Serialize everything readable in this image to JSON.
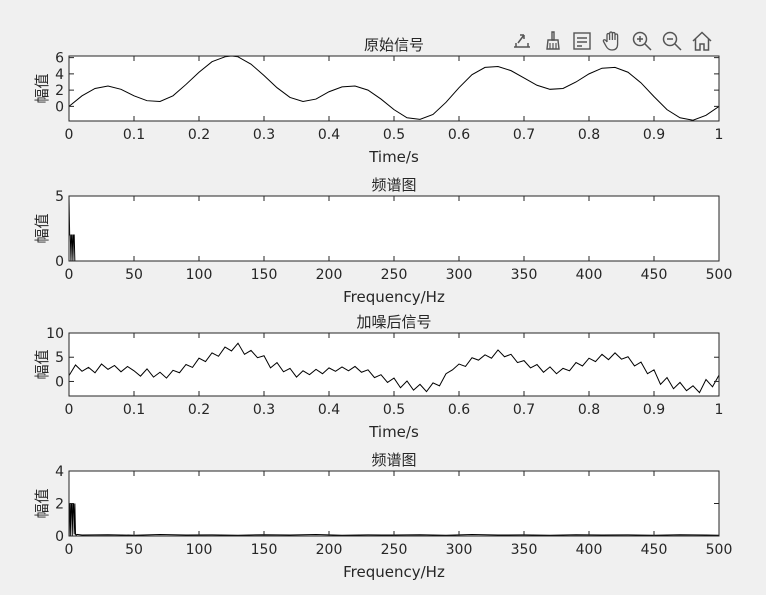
{
  "colors": {
    "background": "#f0f0f0",
    "axes_background": "#ffffff",
    "axis": "#262626",
    "line": "#000000",
    "toolbar_icon": "#555555"
  },
  "toolbar": {
    "icons": [
      "export-icon",
      "brush-icon",
      "legend-icon",
      "pan-hand-icon",
      "zoom-in-icon",
      "zoom-out-icon",
      "home-icon"
    ]
  },
  "chart_data": [
    {
      "type": "line",
      "title": "原始信号",
      "xlabel": "Time/s",
      "ylabel": "幅值",
      "xlim": [
        0,
        1
      ],
      "ylim": [
        -1.8,
        6.2
      ],
      "xticks": [
        0,
        0.1,
        0.2,
        0.3,
        0.4,
        0.5,
        0.6,
        0.7,
        0.8,
        0.9,
        1
      ],
      "xtick_labels": [
        "0",
        "0.1",
        "0.2",
        "0.3",
        "0.4",
        "0.5",
        "0.6",
        "0.7",
        "0.8",
        "0.9",
        "1"
      ],
      "yticks": [
        0,
        2,
        4,
        6
      ],
      "ytick_labels": [
        "0",
        "2",
        "4",
        "6"
      ],
      "series": [
        {
          "x": [
            0,
            0.02,
            0.04,
            0.06,
            0.08,
            0.1,
            0.12,
            0.14,
            0.16,
            0.18,
            0.2,
            0.22,
            0.24,
            0.25,
            0.26,
            0.28,
            0.3,
            0.32,
            0.34,
            0.36,
            0.38,
            0.4,
            0.42,
            0.44,
            0.46,
            0.48,
            0.5,
            0.52,
            0.54,
            0.56,
            0.58,
            0.6,
            0.62,
            0.64,
            0.66,
            0.68,
            0.7,
            0.72,
            0.74,
            0.76,
            0.78,
            0.8,
            0.82,
            0.84,
            0.86,
            0.88,
            0.9,
            0.92,
            0.94,
            0.96,
            0.98,
            1
          ],
          "y": [
            0.0,
            1.3,
            2.2,
            2.5,
            2.1,
            1.3,
            0.7,
            0.6,
            1.3,
            2.7,
            4.2,
            5.5,
            6.1,
            6.2,
            6.1,
            5.2,
            3.8,
            2.3,
            1.1,
            0.6,
            0.9,
            1.8,
            2.4,
            2.5,
            2.0,
            0.9,
            -0.4,
            -1.4,
            -1.6,
            -1.0,
            0.5,
            2.3,
            3.9,
            4.8,
            4.9,
            4.4,
            3.5,
            2.6,
            2.1,
            2.2,
            3.0,
            4.0,
            4.7,
            4.8,
            4.2,
            2.9,
            1.2,
            -0.4,
            -1.4,
            -1.7,
            -1.1,
            0.0
          ]
        }
      ]
    },
    {
      "type": "line",
      "title": "频谱图",
      "xlabel": "Frequency/Hz",
      "ylabel": "幅值",
      "xlim": [
        0,
        500
      ],
      "ylim": [
        0,
        5
      ],
      "xticks": [
        0,
        50,
        100,
        150,
        200,
        250,
        300,
        350,
        400,
        450,
        500
      ],
      "xtick_labels": [
        "0",
        "50",
        "100",
        "150",
        "200",
        "250",
        "300",
        "350",
        "400",
        "450",
        "500"
      ],
      "yticks": [
        0,
        5
      ],
      "ytick_labels": [
        "0",
        "5"
      ],
      "series": [
        {
          "x": [
            0,
            0.5,
            1,
            1.5,
            2,
            2.5,
            3,
            3.5,
            4,
            4.5,
            5,
            5.5,
            6,
            500
          ],
          "y": [
            5.0,
            2.0,
            2.0,
            0.0,
            2.0,
            2.0,
            0.0,
            2.0,
            2.0,
            0.0,
            0.0,
            0.0,
            0.0,
            0.0
          ]
        }
      ]
    },
    {
      "type": "line",
      "title": "加噪后信号",
      "xlabel": "Time/s",
      "ylabel": "幅值",
      "xlim": [
        0,
        1
      ],
      "ylim": [
        -3,
        10
      ],
      "xticks": [
        0,
        0.1,
        0.2,
        0.3,
        0.4,
        0.5,
        0.6,
        0.7,
        0.8,
        0.9,
        1
      ],
      "xtick_labels": [
        "0",
        "0.1",
        "0.2",
        "0.3",
        "0.4",
        "0.5",
        "0.6",
        "0.7",
        "0.8",
        "0.9",
        "1"
      ],
      "yticks": [
        0,
        5,
        10
      ],
      "ytick_labels": [
        "0",
        "5",
        "10"
      ],
      "series": [
        {
          "x": [
            0,
            0.01,
            0.02,
            0.03,
            0.04,
            0.05,
            0.06,
            0.07,
            0.08,
            0.09,
            0.1,
            0.11,
            0.12,
            0.13,
            0.14,
            0.15,
            0.16,
            0.17,
            0.18,
            0.19,
            0.2,
            0.21,
            0.22,
            0.23,
            0.24,
            0.25,
            0.26,
            0.27,
            0.28,
            0.29,
            0.3,
            0.31,
            0.32,
            0.33,
            0.34,
            0.35,
            0.36,
            0.37,
            0.38,
            0.39,
            0.4,
            0.41,
            0.42,
            0.43,
            0.44,
            0.45,
            0.46,
            0.47,
            0.48,
            0.49,
            0.5,
            0.51,
            0.52,
            0.53,
            0.54,
            0.55,
            0.56,
            0.57,
            0.58,
            0.59,
            0.6,
            0.61,
            0.62,
            0.63,
            0.64,
            0.65,
            0.66,
            0.67,
            0.68,
            0.69,
            0.7,
            0.71,
            0.72,
            0.73,
            0.74,
            0.75,
            0.76,
            0.77,
            0.78,
            0.79,
            0.8,
            0.81,
            0.82,
            0.83,
            0.84,
            0.85,
            0.86,
            0.87,
            0.88,
            0.89,
            0.9,
            0.91,
            0.92,
            0.93,
            0.94,
            0.95,
            0.96,
            0.97,
            0.98,
            0.99,
            1
          ],
          "y": [
            1.2,
            3.4,
            2.1,
            2.9,
            1.8,
            3.6,
            2.5,
            3.3,
            2.0,
            3.1,
            2.2,
            1.1,
            2.6,
            0.9,
            1.9,
            0.7,
            2.3,
            1.8,
            3.5,
            2.9,
            4.8,
            4.1,
            5.9,
            5.2,
            7.1,
            6.3,
            7.9,
            5.6,
            6.4,
            4.9,
            5.3,
            2.8,
            3.9,
            2.0,
            2.7,
            0.9,
            2.2,
            1.4,
            2.5,
            1.6,
            2.8,
            2.1,
            3.0,
            2.2,
            3.1,
            1.9,
            2.4,
            0.8,
            1.4,
            -0.2,
            0.7,
            -1.3,
            0.1,
            -1.8,
            -0.6,
            -2.1,
            -0.3,
            -0.9,
            1.6,
            2.4,
            3.6,
            3.1,
            4.9,
            4.4,
            5.5,
            4.8,
            6.5,
            5.1,
            5.6,
            3.9,
            4.3,
            2.8,
            3.5,
            1.9,
            3.0,
            1.6,
            2.7,
            2.2,
            3.9,
            3.2,
            4.8,
            4.1,
            5.6,
            4.5,
            5.9,
            4.6,
            5.1,
            3.2,
            4.0,
            1.6,
            2.4,
            -0.6,
            0.8,
            -1.5,
            -0.2,
            -1.9,
            -0.9,
            -2.3,
            0.4,
            -1.1,
            1.3
          ]
        }
      ]
    },
    {
      "type": "line",
      "title": "频谱图",
      "xlabel": "Frequency/Hz",
      "ylabel": "幅值",
      "xlim": [
        0,
        500
      ],
      "ylim": [
        0,
        4
      ],
      "xticks": [
        0,
        50,
        100,
        150,
        200,
        250,
        300,
        350,
        400,
        450,
        500
      ],
      "xtick_labels": [
        "0",
        "50",
        "100",
        "150",
        "200",
        "250",
        "300",
        "350",
        "400",
        "450",
        "500"
      ],
      "yticks": [
        0,
        2,
        4
      ],
      "ytick_labels": [
        "0",
        "2",
        "4"
      ],
      "series": [
        {
          "x": [
            0,
            0.5,
            1,
            1.5,
            2,
            2.5,
            3,
            3.5,
            4,
            4.5,
            5,
            5.5,
            6,
            10,
            30,
            50,
            70,
            90,
            110,
            130,
            150,
            170,
            190,
            210,
            230,
            250,
            270,
            290,
            310,
            330,
            350,
            370,
            390,
            410,
            430,
            450,
            470,
            490,
            500
          ],
          "y": [
            2.0,
            2.0,
            0.0,
            2.0,
            2.0,
            0.0,
            2.0,
            2.0,
            0.1,
            2.0,
            0.1,
            0.05,
            0.1,
            0.06,
            0.08,
            0.05,
            0.09,
            0.06,
            0.07,
            0.05,
            0.08,
            0.06,
            0.09,
            0.05,
            0.07,
            0.06,
            0.08,
            0.05,
            0.09,
            0.06,
            0.07,
            0.05,
            0.08,
            0.06,
            0.07,
            0.05,
            0.08,
            0.06,
            0.05
          ]
        }
      ]
    }
  ]
}
